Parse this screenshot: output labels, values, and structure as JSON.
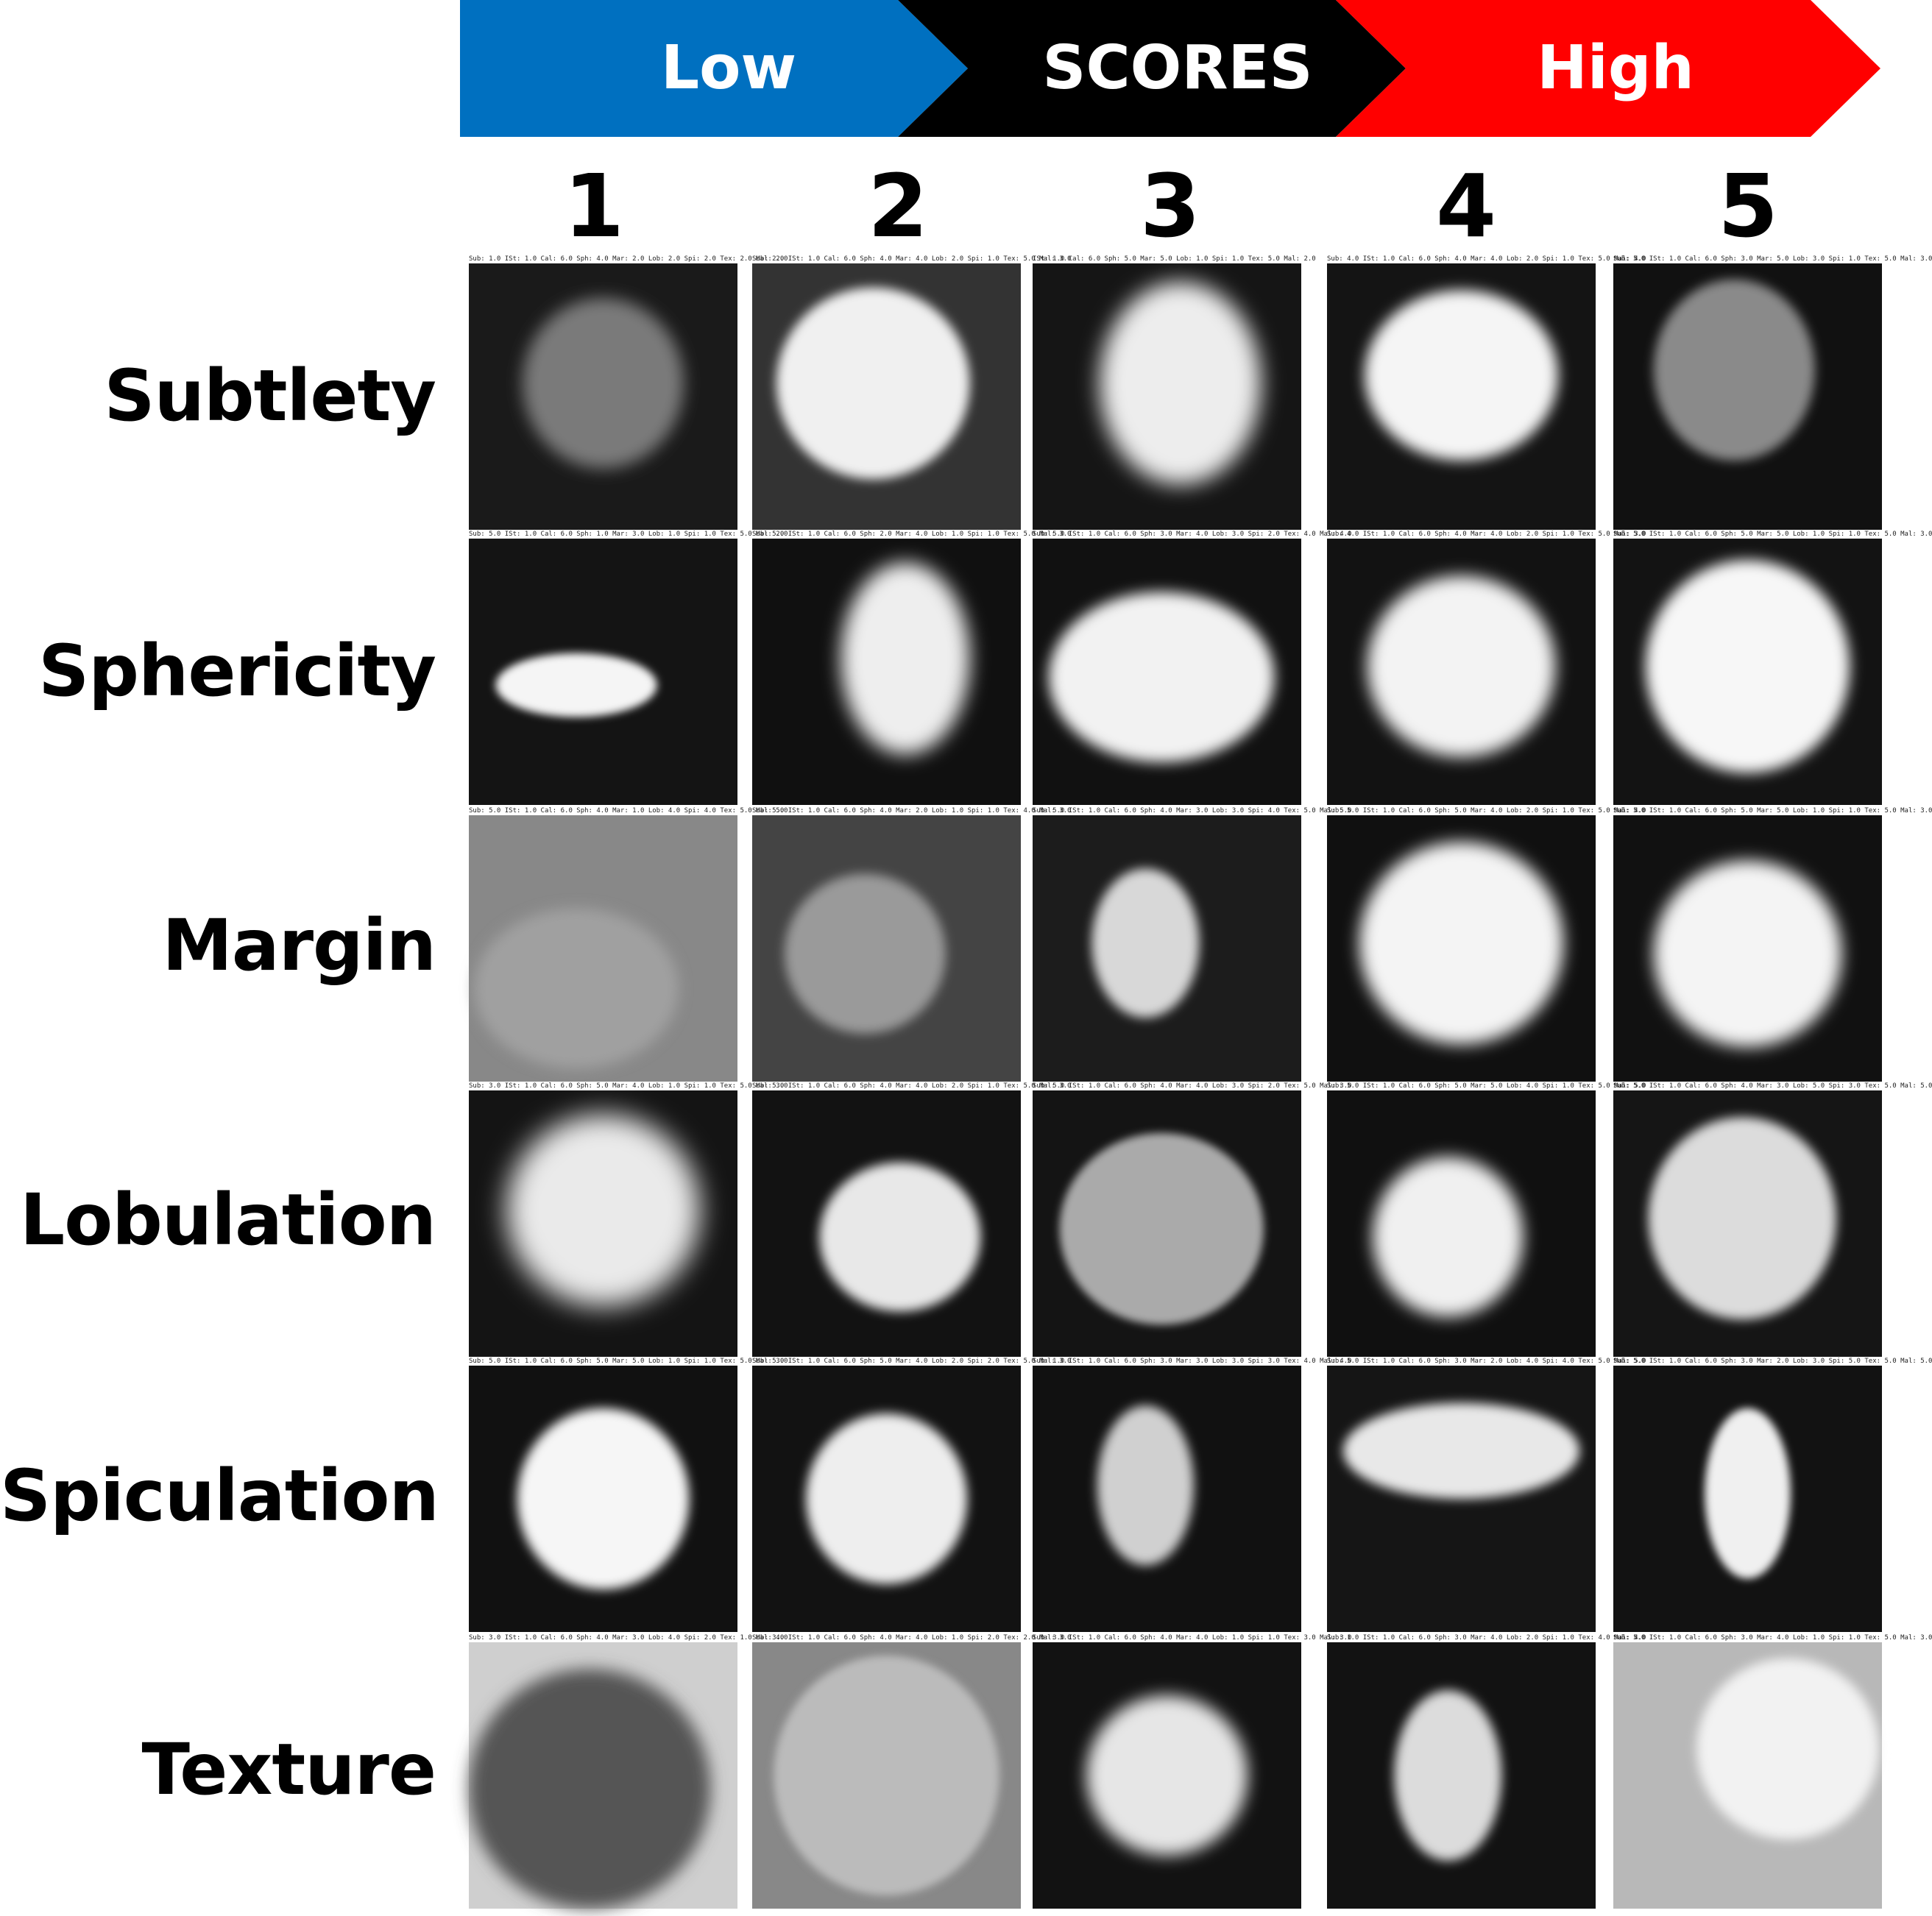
{
  "scale": {
    "low_label": "Low",
    "middle_label": "SCORES",
    "high_label": "High",
    "low_color": "#0070C0",
    "middle_color": "#000000",
    "high_color": "#FF0000"
  },
  "columns": [
    "1",
    "2",
    "3",
    "4",
    "5"
  ],
  "rows": [
    {
      "label": "Subtlety",
      "captions": [
        "Sub: 1.0 ISt: 1.0 Cal: 6.0 Sph: 4.0 Mar: 2.0 Lob: 2.0 Spi: 2.0 Tex: 2.0 Mal: 2.0",
        "Sub: 2.0 ISt: 1.0 Cal: 6.0 Sph: 4.0 Mar: 4.0 Lob: 2.0 Spi: 1.0 Tex: 5.0 Mal: 3.0",
        "ISt: 1.0 Cal: 6.0 Sph: 5.0 Mar: 5.0 Lob: 1.0 Spi: 1.0 Tex: 5.0 Mal: 2.0",
        "Sub: 4.0 ISt: 1.0 Cal: 6.0 Sph: 4.0 Mar: 4.0 Lob: 2.0 Spi: 1.0 Tex: 5.0 Mal: 4.0",
        "Sub: 5.0 ISt: 1.0 Cal: 6.0 Sph: 3.0 Mar: 5.0 Lob: 3.0 Spi: 1.0 Tex: 5.0 Mal: 3.0"
      ]
    },
    {
      "label": "Sphericity",
      "captions": [
        "Sub: 5.0 ISt: 1.0 Cal: 6.0 Sph: 1.0 Mar: 3.0 Lob: 1.0 Spi: 1.0 Tex: 5.0 Mal: 2.0",
        "Sub: 5.0 ISt: 1.0 Cal: 6.0 Sph: 2.0 Mar: 4.0 Lob: 1.0 Spi: 1.0 Tex: 5.0 Mal: 3.0",
        "Sub: 5.0 ISt: 1.0 Cal: 6.0 Sph: 3.0 Mar: 4.0 Lob: 3.0 Spi: 2.0 Tex: 4.0 Mal: 4.0",
        "Sub: 4.0 ISt: 1.0 Cal: 6.0 Sph: 4.0 Mar: 4.0 Lob: 2.0 Spi: 1.0 Tex: 5.0 Mal: 3.0",
        "Sub: 5.0 ISt: 1.0 Cal: 6.0 Sph: 5.0 Mar: 5.0 Lob: 1.0 Spi: 1.0 Tex: 5.0 Mal: 3.0"
      ]
    },
    {
      "label": "Margin",
      "captions": [
        "Sub: 5.0 ISt: 1.0 Cal: 6.0 Sph: 4.0 Mar: 1.0 Lob: 4.0 Spi: 4.0 Tex: 5.0 Mal: 5.0",
        "Sub: 5.0 ISt: 1.0 Cal: 6.0 Sph: 4.0 Mar: 2.0 Lob: 1.0 Spi: 1.0 Tex: 4.0 Mal: 3.0",
        "Sub: 5.0 ISt: 1.0 Cal: 6.0 Sph: 4.0 Mar: 3.0 Lob: 3.0 Spi: 4.0 Tex: 5.0 Mal: 5.0",
        "Sub: 5.0 ISt: 1.0 Cal: 6.0 Sph: 5.0 Mar: 4.0 Lob: 2.0 Spi: 1.0 Tex: 5.0 Mal: 4.0",
        "Sub: 5.0 ISt: 1.0 Cal: 6.0 Sph: 5.0 Mar: 5.0 Lob: 1.0 Spi: 1.0 Tex: 5.0 Mal: 3.0"
      ]
    },
    {
      "label": "Lobulation",
      "captions": [
        "Sub: 3.0 ISt: 1.0 Cal: 6.0 Sph: 5.0 Mar: 4.0 Lob: 1.0 Spi: 1.0 Tex: 5.0 Mal: 3.0",
        "Sub: 5.0 ISt: 1.0 Cal: 6.0 Sph: 4.0 Mar: 4.0 Lob: 2.0 Spi: 1.0 Tex: 5.0 Mal: 3.0",
        "Sub: 5.0 ISt: 1.0 Cal: 6.0 Sph: 4.0 Mar: 4.0 Lob: 3.0 Spi: 2.0 Tex: 5.0 Mal: 3.0",
        "Sub: 5.0 ISt: 1.0 Cal: 6.0 Sph: 5.0 Mar: 5.0 Lob: 4.0 Spi: 1.0 Tex: 5.0 Mal: 5.0",
        "Sub: 5.0 ISt: 1.0 Cal: 6.0 Sph: 4.0 Mar: 3.0 Lob: 5.0 Spi: 3.0 Tex: 5.0 Mal: 5.0"
      ]
    },
    {
      "label": "Spiculation",
      "captions": [
        "Sub: 5.0 ISt: 1.0 Cal: 6.0 Sph: 5.0 Mar: 5.0 Lob: 1.0 Spi: 1.0 Tex: 5.0 Mal: 3.0",
        "Sub: 5.0 ISt: 1.0 Cal: 6.0 Sph: 5.0 Mar: 4.0 Lob: 2.0 Spi: 2.0 Tex: 5.0 Mal: 3.0",
        "Sub: 1.0 ISt: 1.0 Cal: 6.0 Sph: 3.0 Mar: 3.0 Lob: 3.0 Spi: 3.0 Tex: 4.0 Mal: 4.0",
        "Sub: 5.0 ISt: 1.0 Cal: 6.0 Sph: 3.0 Mar: 2.0 Lob: 4.0 Spi: 4.0 Tex: 5.0 Mal: 5.0",
        "Sub: 5.0 ISt: 1.0 Cal: 6.0 Sph: 3.0 Mar: 2.0 Lob: 3.0 Spi: 5.0 Tex: 5.0 Mal: 5.0"
      ]
    },
    {
      "label": "Texture",
      "captions": [
        "Sub: 3.0 ISt: 1.0 Cal: 6.0 Sph: 4.0 Mar: 3.0 Lob: 4.0 Spi: 2.0 Tex: 1.0 Mal: 4.0",
        "Sub: 3.0 ISt: 1.0 Cal: 6.0 Sph: 4.0 Mar: 4.0 Lob: 1.0 Spi: 2.0 Tex: 2.0 Mal: 3.0",
        "Sub: 3.0 ISt: 1.0 Cal: 6.0 Sph: 4.0 Mar: 4.0 Lob: 1.0 Spi: 1.0 Tex: 3.0 Mal: 3.0",
        "Sub: 1.0 ISt: 1.0 Cal: 6.0 Sph: 3.0 Mar: 4.0 Lob: 2.0 Spi: 1.0 Tex: 4.0 Mal: 4.0",
        "Sub: 5.0 ISt: 1.0 Cal: 6.0 Sph: 3.0 Mar: 4.0 Lob: 1.0 Spi: 1.0 Tex: 5.0 Mal: 3.0"
      ]
    }
  ]
}
